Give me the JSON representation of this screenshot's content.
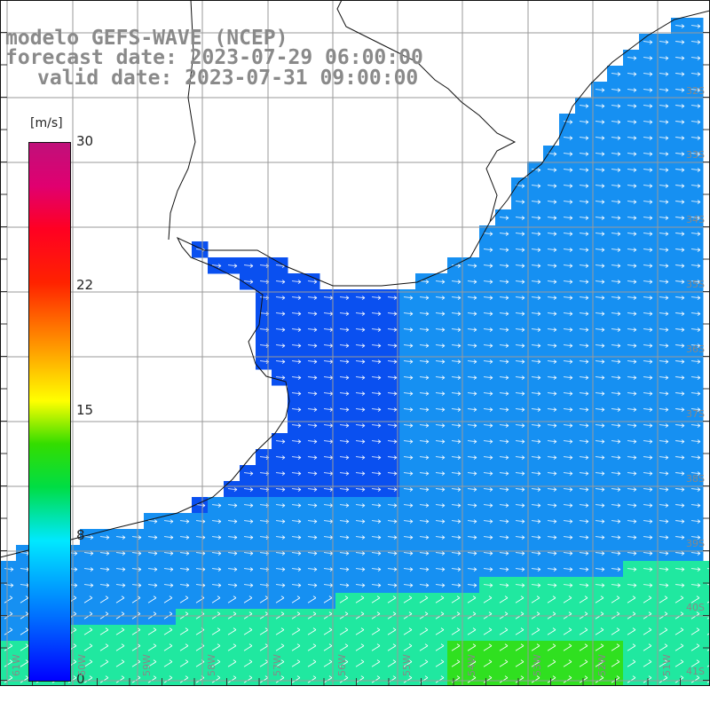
{
  "title": {
    "line1": "modelo GEFS-WAVE (NCEP)",
    "line2": "forecast date: 2023-07-29 06:00:00",
    "line3": "valid date: 2023-07-31 09:00:00"
  },
  "colorbar": {
    "unit": "[m/s]",
    "ticks": [
      {
        "label": "30",
        "value": 30
      },
      {
        "label": "22",
        "value": 22
      },
      {
        "label": "15",
        "value": 15
      },
      {
        "label": "8",
        "value": 8
      },
      {
        "label": "0",
        "value": 0
      }
    ]
  },
  "lat_labels": [
    "32S",
    "33S",
    "34S",
    "35S",
    "36S",
    "37S",
    "38S",
    "39S",
    "40S",
    "41S"
  ],
  "lon_labels": [
    "61W",
    "60W",
    "59W",
    "58W",
    "57W",
    "56W",
    "55W",
    "54W",
    "53W",
    "52W",
    "51W"
  ],
  "colors": {
    "land": "#ffffff",
    "ocean_low": "#0a50f0",
    "ocean_mid": "#1690f2",
    "ocean_high": "#20e8a0",
    "max_wind": "#30e020",
    "grid": "#9a9a9a",
    "coast": "#111111",
    "arrow": "#ffffff"
  }
}
